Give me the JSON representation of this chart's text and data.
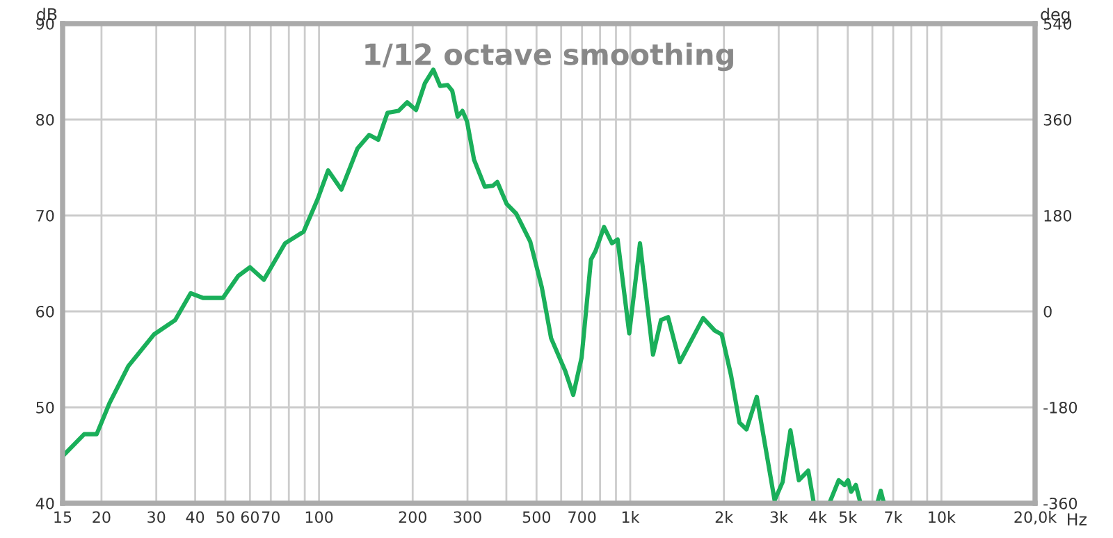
{
  "chart_data": {
    "type": "line",
    "title": "1/12 octave smoothing",
    "xlabel": "Hz",
    "ylabel": "dB",
    "y2label": "deg",
    "log": "x",
    "grid": true,
    "line_style": "solid",
    "marker": "none",
    "xlim": [
      15,
      20000
    ],
    "ylim": [
      40,
      90
    ],
    "y2lim": [
      -360,
      540
    ],
    "xticks": [
      15,
      20,
      30,
      40,
      50,
      60,
      70,
      {
        "value": 80,
        "label": null
      },
      {
        "value": 90,
        "label": null
      },
      100,
      200,
      300,
      {
        "value": 400,
        "label": null
      },
      500,
      {
        "value": 600,
        "label": null
      },
      700,
      {
        "value": 800,
        "label": null
      },
      {
        "value": 900,
        "label": null
      },
      {
        "value": 1000,
        "label": "1k"
      },
      {
        "value": 2000,
        "label": "2k"
      },
      {
        "value": 3000,
        "label": "3k"
      },
      {
        "value": 4000,
        "label": "4k"
      },
      {
        "value": 5000,
        "label": "5k"
      },
      {
        "value": 6000,
        "label": null
      },
      {
        "value": 7000,
        "label": "7k"
      },
      {
        "value": 8000,
        "label": null
      },
      {
        "value": 9000,
        "label": null
      },
      {
        "value": 10000,
        "label": "10k"
      },
      {
        "value": 20000,
        "label": "20,0k"
      }
    ],
    "yticks": [
      40,
      50,
      60,
      70,
      80,
      90
    ],
    "y2ticks": [
      -360,
      -180,
      0,
      180,
      360,
      540
    ],
    "series": [
      {
        "color": "#1aaf5a",
        "x": [
          15,
          17.6,
          19.3,
          21.2,
          24.4,
          29.5,
          34.5,
          38.7,
          42.4,
          49.1,
          55,
          60,
          66.5,
          77.8,
          89.2,
          99,
          107,
          118,
          133,
          145,
          155,
          166,
          180,
          192,
          205,
          219,
          233,
          245,
          259,
          268,
          279,
          289,
          299,
          315,
          341,
          362,
          374,
          401,
          430,
          477,
          520,
          557,
          618,
          656,
          698,
          748,
          774,
          824,
          874,
          911,
          993,
          1075,
          1184,
          1256,
          1323,
          1443,
          1573,
          1715,
          1869,
          1968,
          2110,
          2244,
          2364,
          2551,
          2911,
          3088,
          3272,
          3483,
          3733,
          3891,
          4100,
          4365,
          4677,
          4887,
          5012,
          5128,
          5309,
          5495,
          5900,
          6223,
          6383,
          6536
        ],
        "values": [
          44.9,
          47.2,
          47.2,
          50.4,
          54.3,
          57.6,
          59.1,
          61.9,
          61.4,
          61.4,
          63.7,
          64.6,
          63.3,
          67.1,
          68.3,
          71.7,
          74.7,
          72.7,
          77.0,
          78.4,
          77.9,
          80.7,
          80.9,
          81.8,
          81.0,
          83.8,
          85.2,
          83.5,
          83.6,
          83.0,
          80.3,
          80.9,
          79.8,
          75.8,
          73.0,
          73.1,
          73.5,
          71.2,
          70.2,
          67.3,
          62.5,
          57.2,
          53.8,
          51.3,
          55.2,
          65.4,
          66.3,
          68.8,
          67.1,
          67.5,
          57.7,
          67.1,
          55.5,
          59.1,
          59.4,
          54.7,
          57.0,
          59.3,
          58.0,
          57.6,
          53.3,
          48.4,
          47.7,
          51.1,
          40.3,
          42.2,
          47.6,
          42.4,
          43.4,
          40.0,
          null,
          40.0,
          42.4,
          41.9,
          42.4,
          41.2,
          41.9,
          40.0,
          null,
          40.0,
          41.3,
          40.0
        ]
      }
    ]
  }
}
